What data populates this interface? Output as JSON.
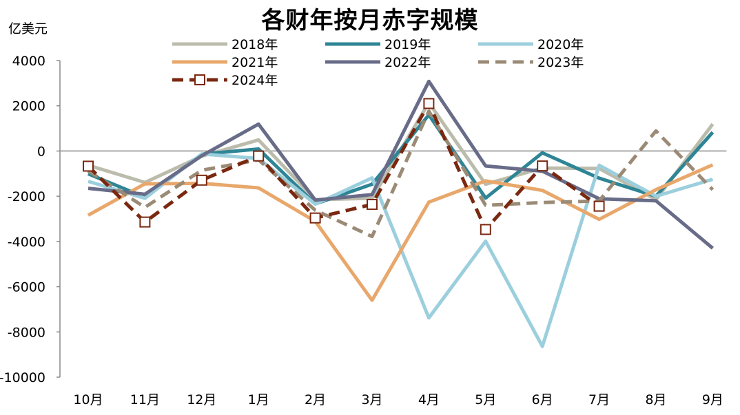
{
  "chart_data": {
    "type": "line",
    "title": "各财年按月赤字规模",
    "unit_label": "亿美元",
    "xlabel": "",
    "ylabel": "",
    "categories": [
      "10月",
      "11月",
      "12月",
      "1月",
      "2月",
      "3月",
      "4月",
      "5月",
      "6月",
      "7月",
      "8月",
      "9月"
    ],
    "ylim": [
      -10000,
      4000
    ],
    "yticks": [
      4000,
      2000,
      0,
      -2000,
      -4000,
      -6000,
      -8000,
      -10000
    ],
    "legend_position": "top",
    "series": [
      {
        "name": "2018年",
        "color": "#bcbcac",
        "dash": "solid",
        "marker": "none",
        "values": [
          -630,
          -1390,
          -230,
          490,
          -2150,
          -2090,
          2140,
          -1470,
          -750,
          -770,
          -2150,
          1190
        ]
      },
      {
        "name": "2019年",
        "color": "#2e8595",
        "dash": "solid",
        "marker": "none",
        "values": [
          -1010,
          -2040,
          -140,
          90,
          -2340,
          -1470,
          1600,
          -2080,
          -80,
          -1200,
          -2000,
          830
        ]
      },
      {
        "name": "2020年",
        "color": "#9ccfdd",
        "dash": "solid",
        "marker": "none",
        "values": [
          -1340,
          -2090,
          -130,
          -330,
          -2350,
          -1190,
          -7380,
          -3990,
          -8640,
          -630,
          -2000,
          -1250
        ]
      },
      {
        "name": "2021年",
        "color": "#e8a76b",
        "dash": "solid",
        "marker": "none",
        "values": [
          -2840,
          -1450,
          -1430,
          -1630,
          -3110,
          -6600,
          -2260,
          -1320,
          -1740,
          -3020,
          -1710,
          -610
        ]
      },
      {
        "name": "2022年",
        "color": "#686c88",
        "dash": "solid",
        "marker": "none",
        "values": [
          -1650,
          -1910,
          -210,
          1190,
          -2170,
          -1930,
          3080,
          -660,
          -890,
          -2110,
          -2200,
          -4300
        ]
      },
      {
        "name": "2023年",
        "color": "#9b8b76",
        "dash": "dashed",
        "marker": "none",
        "values": [
          -880,
          -2490,
          -850,
          -390,
          -2620,
          -3780,
          1760,
          -2400,
          -2280,
          -2210,
          890,
          -1710
        ]
      },
      {
        "name": "2024年",
        "color": "#7a2810",
        "dash": "dashed",
        "marker": "square",
        "values": [
          -670,
          -3140,
          -1290,
          -220,
          -2960,
          -2360,
          2100,
          -3470,
          -660,
          -2440,
          null,
          null
        ]
      }
    ]
  }
}
